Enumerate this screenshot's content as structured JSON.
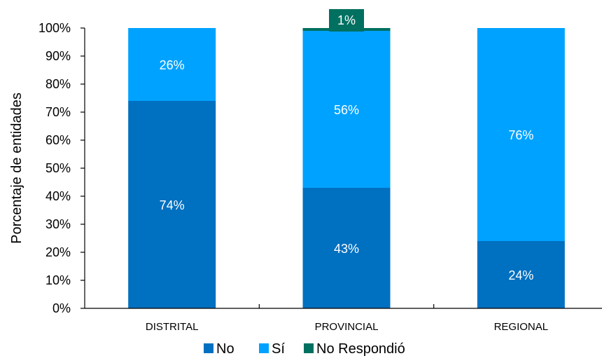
{
  "chart_data": {
    "type": "bar",
    "stacked": true,
    "categories": [
      "DISTRITAL",
      "PROVINCIAL",
      "REGIONAL"
    ],
    "series": [
      {
        "name": "No",
        "values": [
          74,
          43,
          24
        ],
        "labels": [
          "74%",
          "43%",
          "24%"
        ]
      },
      {
        "name": "Sí",
        "values": [
          26,
          56,
          76
        ],
        "labels": [
          "26%",
          "56%",
          "76%"
        ]
      },
      {
        "name": "No Respondió",
        "values": [
          0,
          1,
          0
        ],
        "labels": [
          "",
          "1%",
          ""
        ]
      }
    ],
    "ylabel": "Porcentaje de entidades",
    "ylim": [
      0,
      100
    ],
    "yticks": [
      "0%",
      "10%",
      "20%",
      "30%",
      "40%",
      "50%",
      "60%",
      "70%",
      "80%",
      "90%",
      "100%"
    ],
    "grid": false,
    "legend_position": "bottom",
    "colors": {
      "No": "#0070C0",
      "Sí": "#00A2FF",
      "No Respondió": "#007060"
    }
  }
}
